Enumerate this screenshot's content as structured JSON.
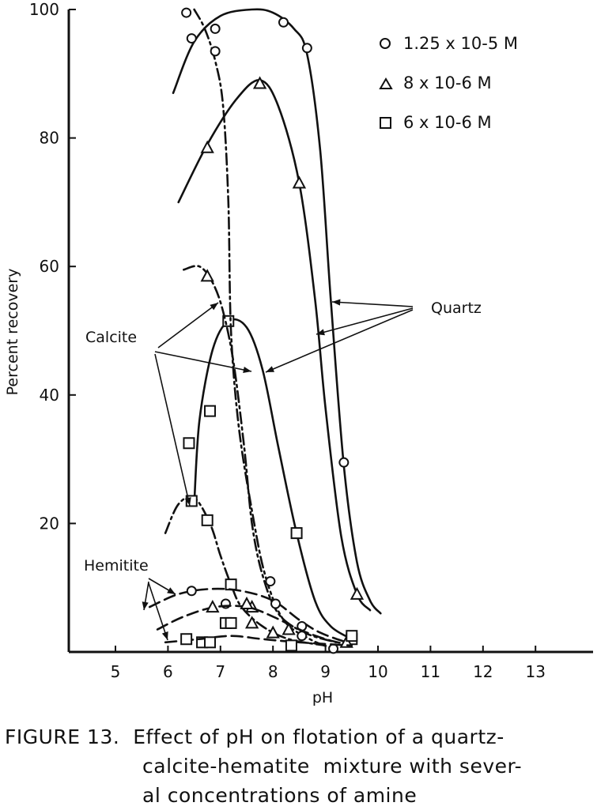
{
  "chart_data": {
    "type": "line",
    "xlabel": "pH",
    "ylabel": "Percent recovery",
    "xlim": [
      4,
      14
    ],
    "ylim": [
      0,
      100
    ],
    "x_ticks": [
      5,
      6,
      7,
      8,
      9,
      10,
      11,
      12,
      13
    ],
    "y_ticks": [
      20,
      40,
      60,
      80,
      100
    ],
    "grid": false,
    "legend_position": "top-right",
    "legend": [
      {
        "marker": "circle",
        "label": "1.25 x 10-5 M"
      },
      {
        "marker": "triangle",
        "label": "8 x 10-6 M"
      },
      {
        "marker": "square",
        "label": "6 x 10-6 M"
      }
    ],
    "series": [
      {
        "mineral": "Quartz",
        "conc": "1.25 x 10-5 M",
        "marker": "circle",
        "style": "solid",
        "points": [
          [
            6.9,
            97
          ],
          [
            8.2,
            98
          ],
          [
            8.65,
            94
          ],
          [
            9.35,
            29.5
          ]
        ],
        "curve": [
          [
            6.1,
            87
          ],
          [
            6.5,
            95
          ],
          [
            7.0,
            99
          ],
          [
            7.6,
            100
          ],
          [
            8.0,
            99.5
          ],
          [
            8.4,
            97
          ],
          [
            8.65,
            93
          ],
          [
            8.9,
            78
          ],
          [
            9.1,
            55
          ],
          [
            9.35,
            29
          ],
          [
            9.6,
            14
          ],
          [
            9.85,
            8
          ],
          [
            10.05,
            6
          ]
        ]
      },
      {
        "mineral": "Quartz",
        "conc": "8 x 10-6 M",
        "marker": "triangle",
        "style": "solid",
        "points": [
          [
            6.75,
            78.5
          ],
          [
            7.75,
            88.5
          ],
          [
            8.5,
            73
          ],
          [
            9.6,
            9
          ]
        ],
        "curve": [
          [
            6.2,
            70
          ],
          [
            6.75,
            79
          ],
          [
            7.3,
            86
          ],
          [
            7.75,
            89
          ],
          [
            8.1,
            85
          ],
          [
            8.5,
            73
          ],
          [
            8.8,
            55
          ],
          [
            9.0,
            38
          ],
          [
            9.3,
            18
          ],
          [
            9.6,
            9
          ],
          [
            9.85,
            6.5
          ]
        ]
      },
      {
        "mineral": "Quartz",
        "conc": "6 x 10-6 M",
        "marker": "square",
        "style": "solid",
        "points": [
          [
            6.4,
            32.5
          ],
          [
            6.8,
            37.5
          ],
          [
            7.15,
            51.5
          ],
          [
            8.45,
            18.5
          ],
          [
            9.5,
            2
          ]
        ],
        "curve": [
          [
            6.5,
            23
          ],
          [
            6.6,
            36
          ],
          [
            6.85,
            47
          ],
          [
            7.15,
            51.5
          ],
          [
            7.5,
            50.5
          ],
          [
            7.8,
            44
          ],
          [
            8.1,
            32
          ],
          [
            8.45,
            18.5
          ],
          [
            8.8,
            8
          ],
          [
            9.1,
            4
          ],
          [
            9.5,
            2
          ]
        ]
      },
      {
        "mineral": "Calcite",
        "conc": "1.25 x 10-5 M",
        "marker": "circle",
        "style": "dash-dot",
        "points": [
          [
            6.35,
            99.5
          ],
          [
            6.45,
            95.5
          ],
          [
            6.9,
            93.5
          ],
          [
            7.95,
            11
          ],
          [
            9.15,
            0.5
          ]
        ],
        "curve": [
          [
            6.5,
            100
          ],
          [
            6.7,
            97
          ],
          [
            6.9,
            92
          ],
          [
            7.05,
            85
          ],
          [
            7.15,
            70
          ],
          [
            7.2,
            50
          ],
          [
            7.35,
            35
          ],
          [
            7.6,
            22
          ],
          [
            7.85,
            12
          ],
          [
            8.2,
            5
          ],
          [
            8.7,
            2
          ],
          [
            9.15,
            0.5
          ]
        ]
      },
      {
        "mineral": "Calcite",
        "conc": "8 x 10-6 M",
        "marker": "triangle",
        "style": "dash-dot",
        "points": [
          [
            6.75,
            58.5
          ],
          [
            7.6,
            7
          ]
        ],
        "curve": [
          [
            6.3,
            59.5
          ],
          [
            6.6,
            60
          ],
          [
            6.85,
            57.5
          ],
          [
            7.05,
            53
          ],
          [
            7.25,
            45
          ],
          [
            7.45,
            32
          ],
          [
            7.6,
            20
          ],
          [
            7.8,
            12
          ],
          [
            8.1,
            6
          ],
          [
            8.6,
            3
          ],
          [
            9.2,
            1.5
          ]
        ]
      },
      {
        "mineral": "Calcite",
        "conc": "6 x 10-6 M",
        "marker": "square",
        "style": "dash-dot",
        "points": [
          [
            6.45,
            23.5
          ],
          [
            6.75,
            20.5
          ],
          [
            7.2,
            10.5
          ],
          [
            7.1,
            4.5
          ],
          [
            6.65,
            1.5
          ]
        ],
        "curve": [
          [
            5.95,
            18.5
          ],
          [
            6.2,
            23
          ],
          [
            6.5,
            24
          ],
          [
            6.8,
            20
          ],
          [
            7.0,
            15
          ],
          [
            7.2,
            10.5
          ],
          [
            7.4,
            7
          ],
          [
            7.8,
            4
          ],
          [
            8.3,
            2
          ],
          [
            9.0,
            1
          ]
        ]
      },
      {
        "mineral": "Hematite",
        "conc": "1.25 x 10-5 M",
        "marker": "circle",
        "style": "dashed",
        "points": [
          [
            6.45,
            9.5
          ],
          [
            7.1,
            7.5
          ],
          [
            8.05,
            7.5
          ],
          [
            8.55,
            4
          ],
          [
            8.55,
            2.5
          ]
        ],
        "curve": [
          [
            5.65,
            7
          ],
          [
            6.2,
            9
          ],
          [
            6.8,
            9.8
          ],
          [
            7.4,
            9.5
          ],
          [
            8.0,
            8
          ],
          [
            8.5,
            5
          ],
          [
            8.9,
            3
          ],
          [
            9.4,
            1.5
          ]
        ]
      },
      {
        "mineral": "Hematite",
        "conc": "8 x 10-6 M",
        "marker": "triangle",
        "style": "dashed",
        "points": [
          [
            6.85,
            7
          ],
          [
            7.5,
            7.5
          ],
          [
            7.6,
            4.5
          ],
          [
            8.0,
            3
          ],
          [
            8.3,
            3.5
          ],
          [
            9.4,
            1.5
          ]
        ],
        "curve": [
          [
            5.8,
            3.5
          ],
          [
            6.3,
            5.5
          ],
          [
            6.9,
            7
          ],
          [
            7.5,
            7
          ],
          [
            8.0,
            5.5
          ],
          [
            8.5,
            3.5
          ],
          [
            9.0,
            2
          ],
          [
            9.4,
            1.2
          ]
        ]
      },
      {
        "mineral": "Hematite",
        "conc": "6 x 10-6 M",
        "marker": "square",
        "style": "dashed",
        "points": [
          [
            6.35,
            2
          ],
          [
            6.8,
            1.5
          ],
          [
            7.2,
            4.5
          ],
          [
            8.35,
            1
          ],
          [
            9.5,
            2.5
          ]
        ],
        "curve": [
          [
            5.95,
            1.5
          ],
          [
            6.6,
            2
          ],
          [
            7.2,
            2.5
          ],
          [
            7.8,
            2
          ],
          [
            8.5,
            1.5
          ],
          [
            9.5,
            1
          ]
        ]
      }
    ],
    "annotations": [
      {
        "label": "Quartz",
        "style": "arrows"
      },
      {
        "label": "Calcite",
        "style": "arrows"
      },
      {
        "label": "Hemitite",
        "style": "arrows"
      }
    ]
  },
  "caption": {
    "line1": "FIGURE 13.  Effect of pH on flotation of a quartz-",
    "line2": "calcite-hematite  mixture with sever-",
    "line3": "al concentrations of amine"
  }
}
